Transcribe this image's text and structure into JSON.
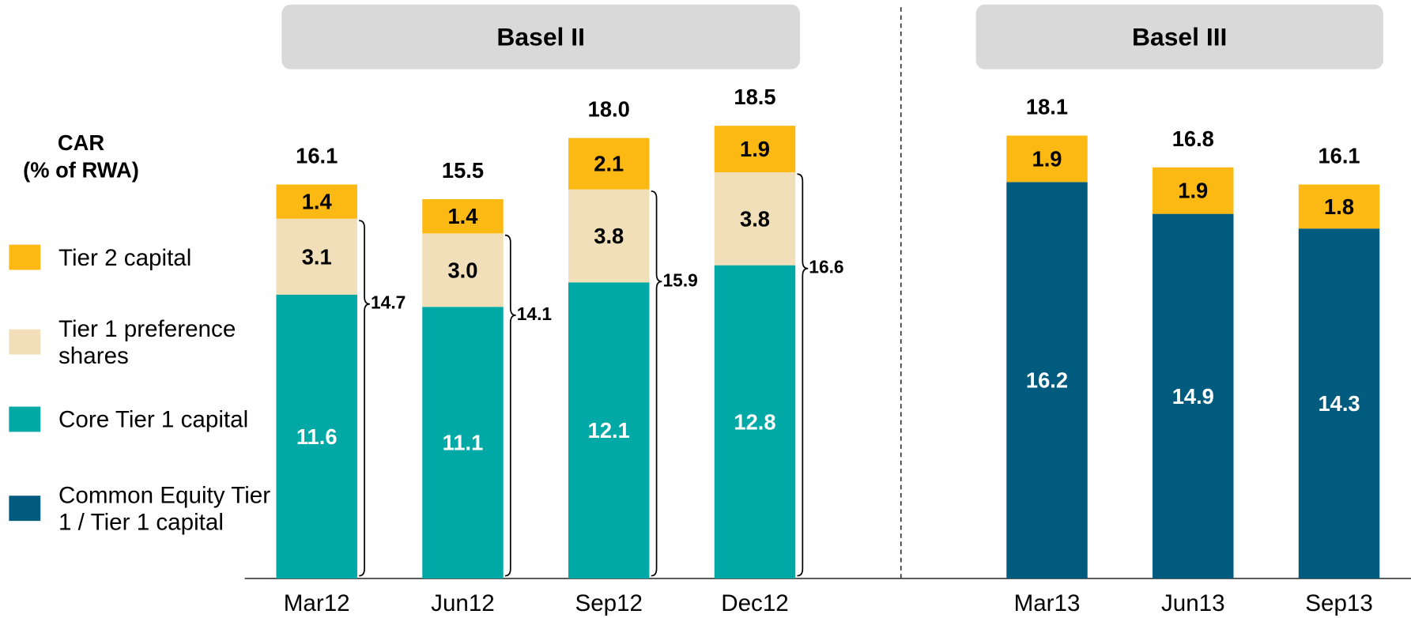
{
  "chart_data": {
    "type": "stacked_bar",
    "y_label": "CAR\n(% of RWA)",
    "groups": [
      {
        "name": "Basel II",
        "start": 0,
        "end": 3
      },
      {
        "name": "Basel III",
        "start": 4,
        "end": 6
      }
    ],
    "categories": [
      "Mar12",
      "Jun12",
      "Sep12",
      "Dec12",
      "Mar13",
      "Jun13",
      "Sep13"
    ],
    "series": [
      {
        "name": "Core Tier 1 capital",
        "color": "#00A9A6",
        "label_color": "#ffffff",
        "values": [
          11.6,
          11.1,
          12.1,
          12.8,
          null,
          null,
          null
        ]
      },
      {
        "name": "Common Equity Tier 1 / Tier 1 capital",
        "color": "#005B7F",
        "label_color": "#ffffff",
        "values": [
          null,
          null,
          null,
          null,
          16.2,
          14.9,
          14.3
        ]
      },
      {
        "name": "Tier 1 preference shares",
        "color": "#F0DFB8",
        "label_color": "#000000",
        "values": [
          3.1,
          3.0,
          3.8,
          3.8,
          null,
          null,
          null
        ],
        "value_labels": [
          "3.1",
          "3.0",
          "3.8",
          "3.8",
          null,
          null,
          null
        ]
      },
      {
        "name": "Tier 2 capital",
        "color": "#FDB913",
        "label_color": "#000000",
        "values": [
          1.4,
          1.4,
          2.1,
          1.9,
          1.9,
          1.9,
          1.8
        ]
      }
    ],
    "legend_order": [
      3,
      2,
      0,
      1
    ],
    "totals": {
      "values": [
        16.1,
        15.5,
        18.0,
        18.5,
        18.1,
        16.8,
        16.1
      ],
      "value_labels": [
        "16.1",
        "15.5",
        "18.0",
        "18.5",
        "18.1",
        "16.8",
        "16.1"
      ]
    },
    "tier1_totals": {
      "values": [
        14.7,
        14.1,
        15.9,
        16.6
      ]
    },
    "ylim": [
      0,
      20
    ]
  }
}
